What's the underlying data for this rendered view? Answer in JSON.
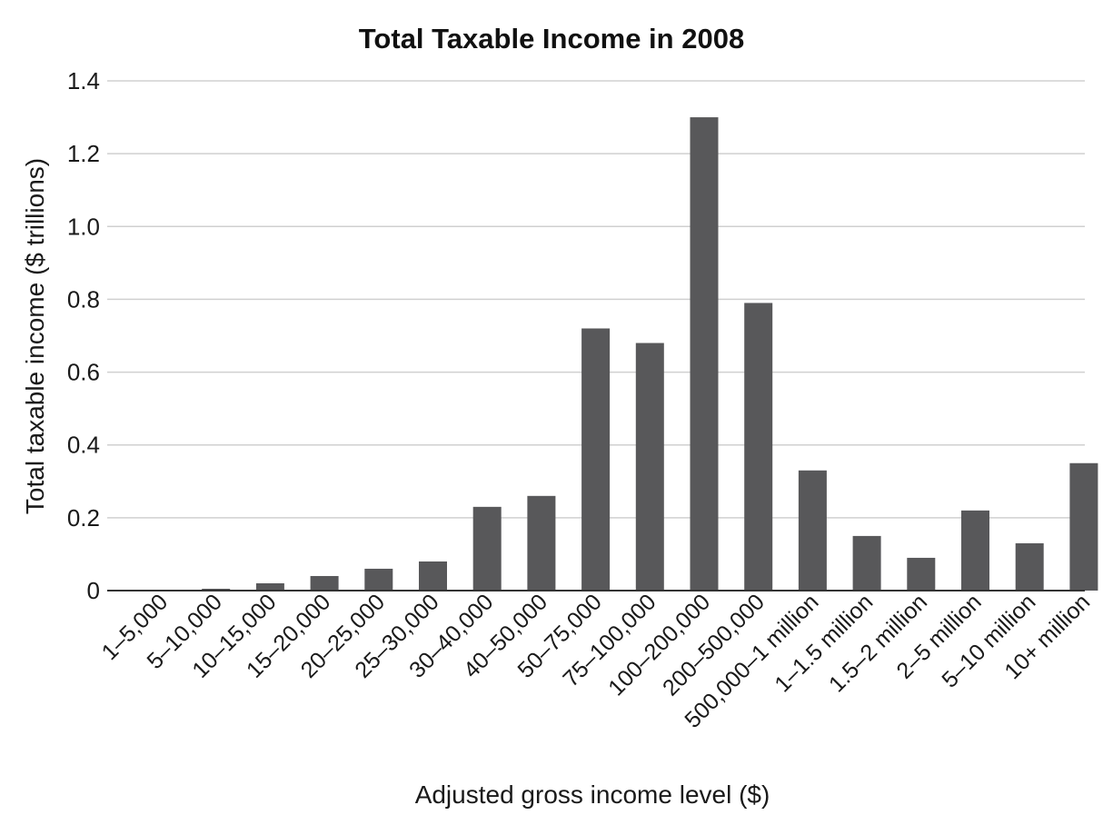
{
  "chart_data": {
    "type": "bar",
    "title": "Total Taxable Income in 2008",
    "xlabel": "Adjusted gross income level ($)",
    "ylabel": "Total taxable income ($ trillions)",
    "ylim": [
      0,
      1.4
    ],
    "yticks": [
      {
        "value": 0,
        "label": "0"
      },
      {
        "value": 0.2,
        "label": "0.2"
      },
      {
        "value": 0.4,
        "label": "0.4"
      },
      {
        "value": 0.6,
        "label": "0.6"
      },
      {
        "value": 0.8,
        "label": "0.8"
      },
      {
        "value": 1.0,
        "label": "1.0"
      },
      {
        "value": 1.2,
        "label": "1.2"
      },
      {
        "value": 1.4,
        "label": "1.4"
      }
    ],
    "grid": true,
    "bar_color": "#58585a",
    "categories": [
      "1–5,000",
      "5–10,000",
      "10–15,000",
      "15–20,000",
      "20–25,000",
      "25–30,000",
      "30–40,000",
      "40–50,000",
      "50–75,000",
      "75–100,000",
      "100–200,000",
      "200–500,000",
      "500,000–1 million",
      "1–1.5 million",
      "1.5–2 million",
      "2–5 million",
      "5–10 million",
      "10+ million"
    ],
    "values": [
      0.0,
      0.005,
      0.02,
      0.04,
      0.06,
      0.08,
      0.23,
      0.26,
      0.72,
      0.68,
      1.3,
      0.79,
      0.33,
      0.15,
      0.09,
      0.22,
      0.13,
      0.35
    ]
  }
}
